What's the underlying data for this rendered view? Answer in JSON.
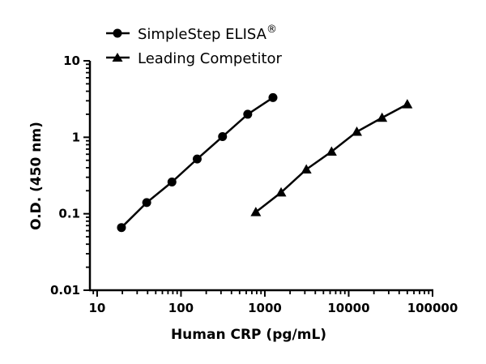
{
  "chart_data": {
    "type": "line",
    "title": "",
    "xlabel": "Human CRP (pg/mL)",
    "ylabel": "O.D. (450 nm)",
    "x_scale": "log",
    "y_scale": "log",
    "xlim": [
      8.2,
      100000
    ],
    "ylim": [
      0.01,
      10
    ],
    "grid": false,
    "legend_position": "top",
    "x_ticks": [
      "10",
      "100",
      "1000",
      "10000",
      "100000"
    ],
    "y_ticks": [
      "0.01",
      "0.1",
      "1",
      "10"
    ],
    "series": [
      {
        "name": "SimpleStep ELISA",
        "name_superscript": "®",
        "marker": "circle",
        "color": "#000000",
        "x": [
          19.5,
          39,
          78,
          156,
          313,
          625,
          1250
        ],
        "y": [
          0.066,
          0.14,
          0.26,
          0.52,
          1.02,
          2.0,
          3.3
        ]
      },
      {
        "name": "Leading Competitor",
        "marker": "triangle",
        "color": "#000000",
        "x": [
          781,
          1563,
          3125,
          6250,
          12500,
          25000,
          50000
        ],
        "y": [
          0.105,
          0.19,
          0.38,
          0.65,
          1.18,
          1.8,
          2.7
        ]
      }
    ]
  }
}
